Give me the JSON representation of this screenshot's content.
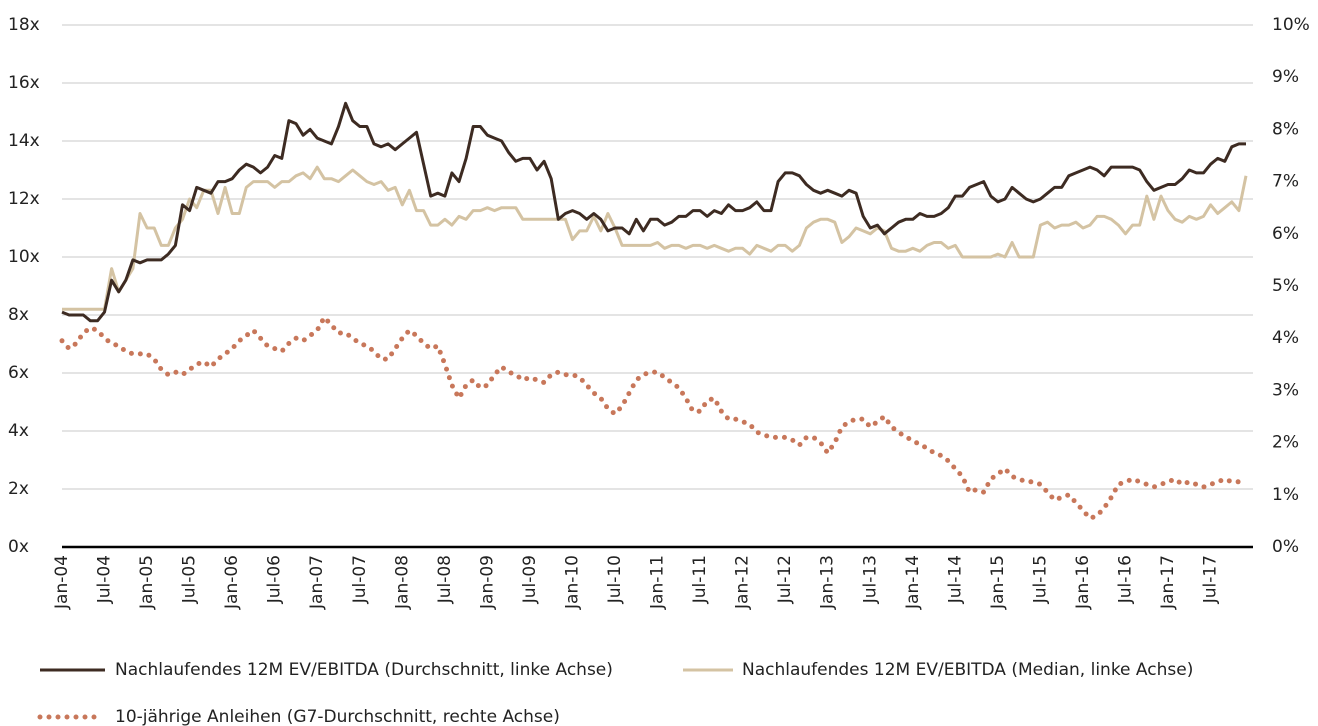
{
  "chart_data": {
    "type": "line",
    "categories": [
      "Jan-04",
      null,
      null,
      null,
      null,
      null,
      "Jul-04",
      null,
      null,
      null,
      null,
      null,
      "Jan-05",
      null,
      null,
      null,
      null,
      null,
      "Jul-05",
      null,
      null,
      null,
      null,
      null,
      "Jan-06",
      null,
      null,
      null,
      null,
      null,
      "Jul-06",
      null,
      null,
      null,
      null,
      null,
      "Jan-07",
      null,
      null,
      null,
      null,
      null,
      "Jul-07",
      null,
      null,
      null,
      null,
      null,
      "Jan-08",
      null,
      null,
      null,
      null,
      null,
      "Jul-08",
      null,
      null,
      null,
      null,
      null,
      "Jan-09",
      null,
      null,
      null,
      null,
      null,
      "Jul-09",
      null,
      null,
      null,
      null,
      null,
      "Jan-10",
      null,
      null,
      null,
      null,
      null,
      "Jul-10",
      null,
      null,
      null,
      null,
      null,
      "Jan-11",
      null,
      null,
      null,
      null,
      null,
      "Jul-11",
      null,
      null,
      null,
      null,
      null,
      "Jan-12",
      null,
      null,
      null,
      null,
      null,
      "Jul-12",
      null,
      null,
      null,
      null,
      null,
      "Jan-13",
      null,
      null,
      null,
      null,
      null,
      "Jul-13",
      null,
      null,
      null,
      null,
      null,
      "Jan-14",
      null,
      null,
      null,
      null,
      null,
      "Jul-14",
      null,
      null,
      null,
      null,
      null,
      "Jan-15",
      null,
      null,
      null,
      null,
      null,
      "Jul-15",
      null,
      null,
      null,
      null,
      null,
      "Jan-16",
      null,
      null,
      null,
      null,
      null,
      "Jul-16",
      null,
      null,
      null,
      null,
      null,
      "Jan-17",
      null,
      null,
      null,
      null,
      null,
      "Jul-17",
      null,
      null,
      null,
      null,
      null
    ],
    "series": [
      {
        "name": "Nachlaufendes 12M EV/EBITDA (Durchschnitt, linke Achse)",
        "color": "#3d2b22",
        "style": "solid",
        "values": [
          8.1,
          8.0,
          8.0,
          8.0,
          7.8,
          7.8,
          8.1,
          9.2,
          8.8,
          9.2,
          9.9,
          9.8,
          9.9,
          9.9,
          9.9,
          10.1,
          10.4,
          11.8,
          11.6,
          12.4,
          12.3,
          12.2,
          12.6,
          12.6,
          12.7,
          13.0,
          13.2,
          13.1,
          12.9,
          13.1,
          13.5,
          13.4,
          14.7,
          14.6,
          14.2,
          14.4,
          14.1,
          14.0,
          13.9,
          14.5,
          15.3,
          14.7,
          14.5,
          14.5,
          13.9,
          13.8,
          13.9,
          13.7,
          13.9,
          14.1,
          14.3,
          13.2,
          12.1,
          12.2,
          12.1,
          12.9,
          12.6,
          13.4,
          14.5,
          14.5,
          14.2,
          14.1,
          14.0,
          13.6,
          13.3,
          13.4,
          13.4,
          13.0,
          13.3,
          12.7,
          11.3,
          11.5,
          11.6,
          11.5,
          11.3,
          11.5,
          11.3,
          10.9,
          11.0,
          11.0,
          10.8,
          11.3,
          10.9,
          11.3,
          11.3,
          11.1,
          11.2,
          11.4,
          11.4,
          11.6,
          11.6,
          11.4,
          11.6,
          11.5,
          11.8,
          11.6,
          11.6,
          11.7,
          11.9,
          11.6,
          11.6,
          12.6,
          12.9,
          12.9,
          12.8,
          12.5,
          12.3,
          12.2,
          12.3,
          12.2,
          12.1,
          12.3,
          12.2,
          11.4,
          11.0,
          11.1,
          10.8,
          11.0,
          11.2,
          11.3,
          11.3,
          11.5,
          11.4,
          11.4,
          11.5,
          11.7,
          12.1,
          12.1,
          12.4,
          12.5,
          12.6,
          12.1,
          11.9,
          12.0,
          12.4,
          12.2,
          12.0,
          11.9,
          12.0,
          12.2,
          12.4,
          12.4,
          12.8,
          12.9,
          13.0,
          13.1,
          13.0,
          12.8,
          13.1,
          13.1,
          13.1,
          13.1,
          13.0,
          12.6,
          12.3,
          12.4,
          12.5,
          12.5,
          12.7,
          13.0,
          12.9,
          12.9,
          13.2,
          13.4,
          13.3,
          13.8,
          13.9,
          13.9
        ]
      },
      {
        "name": "Nachlaufendes 12M EV/EBITDA (Median, linke Achse)",
        "color": "#d4c3a3",
        "style": "solid",
        "values": [
          8.2,
          8.2,
          8.2,
          8.2,
          8.2,
          8.2,
          8.2,
          9.6,
          8.8,
          9.2,
          9.6,
          11.5,
          11.0,
          11.0,
          10.4,
          10.4,
          11.0,
          11.3,
          12.0,
          11.7,
          12.3,
          12.3,
          11.5,
          12.4,
          11.5,
          11.5,
          12.4,
          12.6,
          12.6,
          12.6,
          12.4,
          12.6,
          12.6,
          12.8,
          12.9,
          12.7,
          13.1,
          12.7,
          12.7,
          12.6,
          12.8,
          13.0,
          12.8,
          12.6,
          12.5,
          12.6,
          12.3,
          12.4,
          11.8,
          12.3,
          11.6,
          11.6,
          11.1,
          11.1,
          11.3,
          11.1,
          11.4,
          11.3,
          11.6,
          11.6,
          11.7,
          11.6,
          11.7,
          11.7,
          11.7,
          11.3,
          11.3,
          11.3,
          11.3,
          11.3,
          11.3,
          11.3,
          10.6,
          10.9,
          10.9,
          11.4,
          10.9,
          11.5,
          11.0,
          10.4,
          10.4,
          10.4,
          10.4,
          10.4,
          10.5,
          10.3,
          10.4,
          10.4,
          10.3,
          10.4,
          10.4,
          10.3,
          10.4,
          10.3,
          10.2,
          10.3,
          10.3,
          10.1,
          10.4,
          10.3,
          10.2,
          10.4,
          10.4,
          10.2,
          10.4,
          11.0,
          11.2,
          11.3,
          11.3,
          11.2,
          10.5,
          10.7,
          11.0,
          10.9,
          10.8,
          11.0,
          10.9,
          10.3,
          10.2,
          10.2,
          10.3,
          10.2,
          10.4,
          10.5,
          10.5,
          10.3,
          10.4,
          10.0,
          10.0,
          10.0,
          10.0,
          10.0,
          10.1,
          10.0,
          10.5,
          10.0,
          10.0,
          10.0,
          11.1,
          11.2,
          11.0,
          11.1,
          11.1,
          11.2,
          11.0,
          11.1,
          11.4,
          11.4,
          11.3,
          11.1,
          10.8,
          11.1,
          11.1,
          12.1,
          11.3,
          12.1,
          11.6,
          11.3,
          11.2,
          11.4,
          11.3,
          11.4,
          11.8,
          11.5,
          11.7,
          11.9,
          11.6,
          12.8
        ]
      },
      {
        "name": "10-jährige Anleihen (G7-Durchschnitt, rechte Achse)",
        "color": "#c8775a",
        "style": "dotted",
        "axis": "y2",
        "values": [
          3.95,
          3.8,
          3.9,
          4.1,
          4.2,
          4.15,
          4.0,
          3.9,
          3.85,
          3.75,
          3.7,
          3.7,
          3.7,
          3.6,
          3.4,
          3.3,
          3.35,
          3.3,
          3.4,
          3.5,
          3.55,
          3.45,
          3.6,
          3.7,
          3.8,
          3.95,
          4.05,
          4.15,
          4.0,
          3.85,
          3.8,
          3.75,
          3.9,
          4.0,
          3.95,
          4.05,
          4.15,
          4.4,
          4.25,
          4.1,
          4.1,
          4.0,
          3.9,
          3.85,
          3.75,
          3.6,
          3.6,
          3.8,
          4.0,
          4.15,
          4.05,
          3.9,
          3.8,
          3.85,
          3.5,
          3.1,
          2.85,
          3.1,
          3.2,
          3.05,
          3.1,
          3.3,
          3.45,
          3.35,
          3.3,
          3.2,
          3.25,
          3.2,
          3.15,
          3.3,
          3.35,
          3.3,
          3.3,
          3.25,
          3.1,
          2.95,
          2.85,
          2.65,
          2.55,
          2.7,
          2.95,
          3.2,
          3.3,
          3.35,
          3.35,
          3.25,
          3.15,
          3.05,
          2.85,
          2.6,
          2.6,
          2.8,
          2.85,
          2.6,
          2.45,
          2.45,
          2.4,
          2.35,
          2.2,
          2.15,
          2.1,
          2.1,
          2.1,
          2.05,
          1.95,
          2.1,
          2.1,
          2.0,
          1.8,
          2.0,
          2.3,
          2.4,
          2.45,
          2.45,
          2.3,
          2.4,
          2.5,
          2.3,
          2.2,
          2.1,
          2.05,
          1.95,
          1.9,
          1.8,
          1.75,
          1.65,
          1.5,
          1.35,
          1.05,
          1.1,
          1.05,
          1.3,
          1.4,
          1.5,
          1.35,
          1.3,
          1.25,
          1.25,
          1.2,
          1.05,
          0.9,
          0.95,
          1.0,
          0.85,
          0.7,
          0.55,
          0.6,
          0.75,
          0.95,
          1.2,
          1.25,
          1.3,
          1.25,
          1.2,
          1.15,
          1.2,
          1.25,
          1.3,
          1.2,
          1.25,
          1.2,
          1.15,
          1.2,
          1.25,
          1.3,
          1.25,
          1.25,
          1.2
        ]
      }
    ],
    "ylim": [
      0,
      18
    ],
    "yticks": [
      {
        "value": 0,
        "label": "0x"
      },
      {
        "value": 2,
        "label": "2x"
      },
      {
        "value": 4,
        "label": "4x"
      },
      {
        "value": 6,
        "label": "6x"
      },
      {
        "value": 8,
        "label": "8x"
      },
      {
        "value": 10,
        "label": "10x"
      },
      {
        "value": 12,
        "label": "12x"
      },
      {
        "value": 14,
        "label": "14x"
      },
      {
        "value": 16,
        "label": "16x"
      },
      {
        "value": 18,
        "label": "18x"
      }
    ],
    "y2lim": [
      0,
      10
    ],
    "y2ticks": [
      {
        "value": 0,
        "label": "0%"
      },
      {
        "value": 1,
        "label": "1%"
      },
      {
        "value": 2,
        "label": "2%"
      },
      {
        "value": 3,
        "label": "3%"
      },
      {
        "value": 4,
        "label": "4%"
      },
      {
        "value": 5,
        "label": "5%"
      },
      {
        "value": 6,
        "label": "6%"
      },
      {
        "value": 7,
        "label": "7%"
      },
      {
        "value": 8,
        "label": "8%"
      },
      {
        "value": 9,
        "label": "9%"
      },
      {
        "value": 10,
        "label": "10%"
      }
    ],
    "grid": true
  }
}
